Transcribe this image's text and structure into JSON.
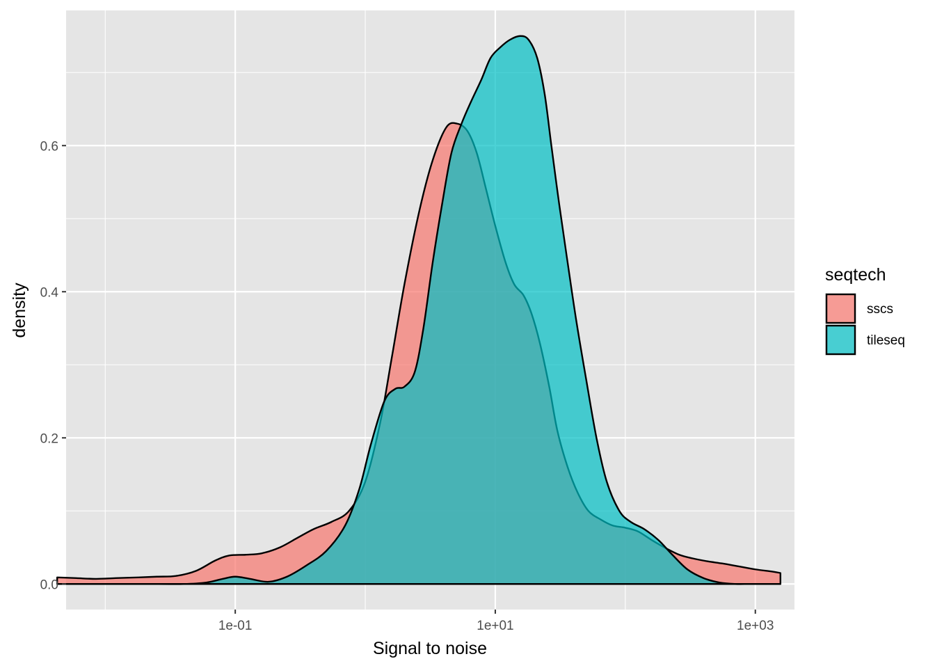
{
  "chart_data": {
    "type": "area",
    "subtype": "density",
    "xlabel": "Signal to noise",
    "ylabel": "density",
    "x_scale": "log10",
    "xlim": [
      0.005,
      2000
    ],
    "ylim": [
      -0.035,
      0.785
    ],
    "x_ticks": [
      0.1,
      10,
      1000
    ],
    "x_tick_labels": [
      "1e-01",
      "1e+01",
      "1e+03"
    ],
    "x_minor_ticks": [
      0.01,
      1,
      100
    ],
    "y_ticks": [
      0.0,
      0.2,
      0.4,
      0.6
    ],
    "y_tick_labels": [
      "0.0",
      "0.2",
      "0.4",
      "0.6"
    ],
    "y_minor_ticks": [
      0.1,
      0.3,
      0.5,
      0.7
    ],
    "grid": true,
    "legend": {
      "title": "seqtech",
      "position": "right"
    },
    "series": [
      {
        "name": "sscs",
        "color": "#F8766D",
        "x": [
          0.00427,
          0.006,
          0.0085,
          0.012,
          0.018,
          0.025,
          0.035,
          0.05,
          0.07,
          0.09,
          0.12,
          0.16,
          0.22,
          0.3,
          0.4,
          0.55,
          0.75,
          1.0,
          1.3,
          1.6,
          2.0,
          2.6,
          3.3,
          4.2,
          5.1,
          6.1,
          7.2,
          8.5,
          10,
          12,
          14,
          16.5,
          19,
          22,
          26,
          30,
          36,
          43,
          52,
          65,
          80,
          100,
          125,
          160,
          200,
          260,
          330,
          430,
          560,
          750,
          1000,
          1350,
          1560
        ],
        "y": [
          0.009,
          0.008,
          0.007,
          0.008,
          0.009,
          0.01,
          0.011,
          0.018,
          0.032,
          0.039,
          0.04,
          0.042,
          0.05,
          0.063,
          0.075,
          0.085,
          0.1,
          0.14,
          0.22,
          0.31,
          0.41,
          0.51,
          0.58,
          0.625,
          0.63,
          0.62,
          0.59,
          0.54,
          0.49,
          0.44,
          0.41,
          0.395,
          0.37,
          0.33,
          0.27,
          0.21,
          0.16,
          0.125,
          0.1,
          0.088,
          0.08,
          0.077,
          0.072,
          0.06,
          0.05,
          0.04,
          0.035,
          0.031,
          0.028,
          0.024,
          0.02,
          0.017,
          0.015
        ]
      },
      {
        "name": "tileseq",
        "color": "#00BFC4",
        "x": [
          0.00427,
          0.01,
          0.02,
          0.04,
          0.06,
          0.08,
          0.1,
          0.13,
          0.18,
          0.25,
          0.35,
          0.5,
          0.7,
          0.9,
          1.1,
          1.4,
          1.7,
          2.0,
          2.4,
          2.8,
          3.3,
          3.9,
          4.6,
          5.5,
          6.5,
          7.8,
          9.2,
          11,
          13,
          15.5,
          18,
          21,
          24,
          27,
          31,
          36,
          42,
          50,
          60,
          72,
          90,
          110,
          140,
          180,
          230,
          300,
          400,
          530,
          700,
          900,
          1200,
          1560
        ],
        "y": [
          0.0,
          0.0,
          0.0,
          0.0,
          0.002,
          0.007,
          0.01,
          0.007,
          0.003,
          0.01,
          0.025,
          0.045,
          0.08,
          0.13,
          0.19,
          0.25,
          0.267,
          0.27,
          0.29,
          0.35,
          0.44,
          0.52,
          0.59,
          0.63,
          0.66,
          0.69,
          0.72,
          0.735,
          0.745,
          0.75,
          0.745,
          0.72,
          0.67,
          0.6,
          0.52,
          0.44,
          0.36,
          0.28,
          0.2,
          0.14,
          0.1,
          0.085,
          0.075,
          0.06,
          0.04,
          0.02,
          0.008,
          0.002,
          0.0,
          0.0,
          0.0,
          0.0
        ]
      }
    ]
  }
}
